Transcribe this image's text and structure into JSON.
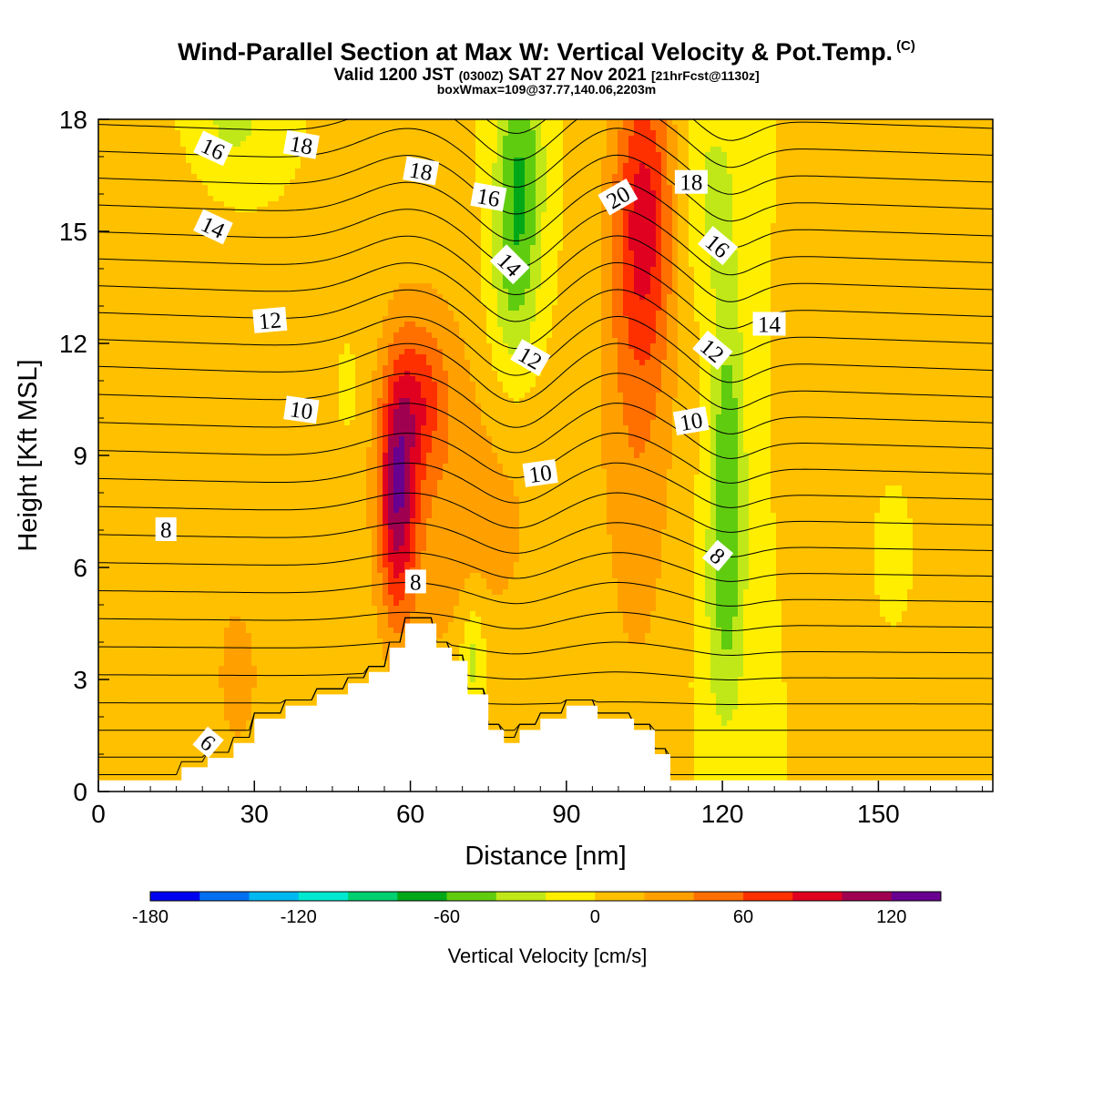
{
  "chart_data": {
    "type": "heatmap",
    "title": "Wind-Parallel Section at Max W: Vertical Velocity & Pot.Temp.",
    "copyright_mark": "(C)",
    "subtitle_pre": "Valid 1200 JST",
    "subtitle_zulu": "(0300Z)",
    "subtitle_date": "SAT 27 Nov 2021",
    "subtitle_fcst": "[21hrFcst@1130z]",
    "subtitle2": "boxWmax=109@37.77,140.06,2203m",
    "xlabel": "Distance [nm]",
    "ylabel": "Height [Kft MSL]",
    "xlim": [
      0,
      172
    ],
    "ylim": [
      0,
      18
    ],
    "x_ticks": [
      0,
      30,
      60,
      90,
      120,
      150
    ],
    "y_ticks": [
      0,
      3,
      6,
      9,
      12,
      15,
      18
    ],
    "colorbar": {
      "label": "Vertical Velocity [cm/s]",
      "range": [
        -180,
        140
      ],
      "ticks": [
        -180,
        -120,
        -60,
        0,
        60,
        120
      ],
      "colors": [
        "#0000f0",
        "#0070f0",
        "#00b8f0",
        "#00e8d0",
        "#00d070",
        "#00a818",
        "#60cc10",
        "#c0e818",
        "#ffee00",
        "#ffc000",
        "#ffa000",
        "#ff7000",
        "#ff3000",
        "#e00020",
        "#a00050",
        "#680090"
      ]
    },
    "terrain": {
      "x": [
        0,
        16,
        16,
        21,
        21,
        26,
        26,
        30,
        30,
        36,
        36,
        42,
        42,
        48,
        48,
        52,
        52,
        56,
        56,
        59,
        59,
        65,
        65,
        68,
        68,
        71,
        71,
        75,
        75,
        78,
        78,
        81,
        81,
        85,
        85,
        90,
        90,
        96,
        96,
        103,
        103,
        107,
        107,
        110,
        110,
        172
      ],
      "y": [
        0.3,
        0.3,
        0.65,
        0.65,
        0.9,
        0.9,
        1.3,
        1.3,
        1.95,
        1.95,
        2.3,
        2.3,
        2.6,
        2.6,
        2.9,
        2.9,
        3.2,
        3.2,
        3.85,
        3.85,
        4.5,
        4.5,
        3.85,
        3.85,
        3.5,
        3.5,
        2.6,
        2.6,
        1.65,
        1.65,
        1.3,
        1.3,
        1.65,
        1.65,
        1.95,
        1.95,
        2.3,
        2.3,
        1.95,
        1.95,
        1.65,
        1.65,
        1.0,
        1.0,
        0.3,
        0.3
      ]
    },
    "w_field": {
      "background": 0,
      "features": [
        {
          "xc": 57.5,
          "yc": 8.0,
          "sx": 2.6,
          "sy": 2.3,
          "amp": 100
        },
        {
          "xc": 62,
          "yc": 10.5,
          "sx": 3.5,
          "sy": 1.4,
          "amp": 45
        },
        {
          "xc": 64,
          "yc": 8.5,
          "sx": 8,
          "sy": 4.5,
          "amp": 30
        },
        {
          "xc": 80,
          "yc": 7.5,
          "sx": 7,
          "sy": 3.5,
          "amp": 18
        },
        {
          "xc": 105,
          "yc": 15.5,
          "sx": 4,
          "sy": 3,
          "amp": 70
        },
        {
          "xc": 103,
          "yc": 12,
          "sx": 6,
          "sy": 5,
          "amp": 28
        },
        {
          "xc": 104,
          "yc": 6,
          "sx": 5,
          "sy": 4,
          "amp": 14
        },
        {
          "xc": 81,
          "yc": 16.5,
          "sx": 3.2,
          "sy": 2.8,
          "amp": -60
        },
        {
          "xc": 79,
          "yc": 13,
          "sx": 3.5,
          "sy": 2,
          "amp": -25
        },
        {
          "xc": 72,
          "yc": 3.6,
          "sx": 1.7,
          "sy": 1,
          "amp": -40
        },
        {
          "xc": 121,
          "yc": 9,
          "sx": 2.4,
          "sy": 3.2,
          "amp": -52
        },
        {
          "xc": 120.5,
          "yc": 4.5,
          "sx": 3,
          "sy": 2.6,
          "amp": -28
        },
        {
          "xc": 118,
          "yc": 16,
          "sx": 4,
          "sy": 2,
          "amp": -25
        },
        {
          "xc": 26,
          "yc": 18,
          "sx": 4,
          "sy": 0.8,
          "amp": -30
        },
        {
          "xc": 48,
          "yc": 10.8,
          "sx": 1,
          "sy": 0.6,
          "amp": -20
        },
        {
          "xc": 152,
          "yc": 6.5,
          "sx": 1,
          "sy": 0.5,
          "amp": -20
        },
        {
          "xc": 27,
          "yc": 3,
          "sx": 2.5,
          "sy": 1.3,
          "amp": 22
        },
        {
          "xc": 10,
          "yc": 12.5,
          "sx": 6,
          "sy": 2.5,
          "amp": 10
        },
        {
          "xc": 20,
          "yc": 4,
          "sx": 15,
          "sy": 4,
          "amp": 12
        },
        {
          "xc": 140,
          "yc": 12,
          "sx": 4,
          "sy": 3,
          "amp": 14
        },
        {
          "xc": 88,
          "yc": 2.5,
          "sx": 6,
          "sy": 1.5,
          "amp": 12
        }
      ]
    },
    "theta_contours": {
      "count": 26,
      "base_height_kft": 0.2,
      "spacing_kft": 0.72,
      "labels": [
        {
          "text": "6",
          "x": 21,
          "y": 1.3,
          "angle": 40
        },
        {
          "text": "8",
          "x": 13,
          "y": 7.0,
          "angle": 0
        },
        {
          "text": "8",
          "x": 61,
          "y": 5.6,
          "angle": 0
        },
        {
          "text": "8",
          "x": 119,
          "y": 6.3,
          "angle": 40
        },
        {
          "text": "10",
          "x": 39,
          "y": 10.2,
          "angle": 8
        },
        {
          "text": "10",
          "x": 85,
          "y": 8.5,
          "angle": -8
        },
        {
          "text": "10",
          "x": 114,
          "y": 9.9,
          "angle": -10
        },
        {
          "text": "12",
          "x": 33,
          "y": 12.6,
          "angle": -5
        },
        {
          "text": "12",
          "x": 83,
          "y": 11.6,
          "angle": 30
        },
        {
          "text": "12",
          "x": 118,
          "y": 11.8,
          "angle": 40
        },
        {
          "text": "14",
          "x": 22,
          "y": 15.1,
          "angle": 25
        },
        {
          "text": "14",
          "x": 79,
          "y": 14.1,
          "angle": 45
        },
        {
          "text": "14",
          "x": 129,
          "y": 12.5,
          "angle": 0
        },
        {
          "text": "16",
          "x": 22,
          "y": 17.2,
          "angle": 25
        },
        {
          "text": "16",
          "x": 75,
          "y": 15.9,
          "angle": 10
        },
        {
          "text": "16",
          "x": 119,
          "y": 14.6,
          "angle": 40
        },
        {
          "text": "18",
          "x": 39,
          "y": 17.3,
          "angle": 10
        },
        {
          "text": "18",
          "x": 62,
          "y": 16.6,
          "angle": 10
        },
        {
          "text": "18",
          "x": 114,
          "y": 16.3,
          "angle": 0
        },
        {
          "text": "20",
          "x": 100,
          "y": 15.9,
          "angle": -30
        }
      ]
    }
  }
}
